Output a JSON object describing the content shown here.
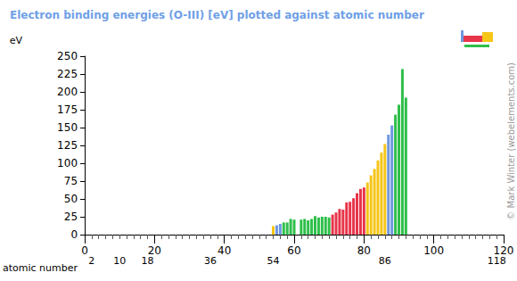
{
  "chart_data": {
    "type": "bar",
    "title": "Electron binding energies (O-III) [eV] plotted against atomic number",
    "x_label": "atomic number",
    "y_label": "eV",
    "annotations": [
      "© Mark Winter (webelements.com)"
    ],
    "x": [
      54,
      55,
      56,
      57,
      58,
      59,
      60,
      61,
      62,
      63,
      64,
      65,
      66,
      67,
      68,
      69,
      70,
      71,
      72,
      73,
      74,
      75,
      76,
      77,
      78,
      79,
      80,
      81,
      82,
      83,
      84,
      85,
      86,
      87,
      88,
      89,
      90,
      91,
      92
    ],
    "values": [
      12,
      13,
      15,
      17,
      17,
      22,
      21,
      null,
      21,
      22,
      20,
      22,
      26,
      24,
      25,
      25,
      24,
      28,
      31,
      36,
      35,
      45,
      46,
      51,
      58,
      64,
      66,
      73,
      83,
      92,
      104,
      115,
      127,
      140,
      153,
      168,
      182,
      232,
      192
    ],
    "colors": [
      "#f5c518",
      "#6d98e0",
      "#6d98e0",
      "#2fbf4a",
      "#2fbf4a",
      "#2fbf4a",
      "#2fbf4a",
      "#2fbf4a",
      "#2fbf4a",
      "#2fbf4a",
      "#2fbf4a",
      "#2fbf4a",
      "#2fbf4a",
      "#2fbf4a",
      "#2fbf4a",
      "#2fbf4a",
      "#2fbf4a",
      "#e8344a",
      "#e8344a",
      "#e8344a",
      "#e8344a",
      "#e8344a",
      "#e8344a",
      "#e8344a",
      "#e8344a",
      "#e8344a",
      "#e8344a",
      "#f5c518",
      "#f5c518",
      "#f5c518",
      "#f5c518",
      "#f5c518",
      "#f5c518",
      "#6d98e0",
      "#6d98e0",
      "#2fbf4a",
      "#2fbf4a",
      "#2fbf4a",
      "#2fbf4a"
    ],
    "xlim": [
      0,
      120
    ],
    "xticks": [
      0,
      20,
      40,
      60,
      80,
      100,
      120
    ],
    "x_secondary_ticks": [
      2,
      10,
      18,
      36,
      54,
      86,
      118
    ],
    "ylim": [
      0,
      250
    ],
    "yticks": [
      0,
      25,
      50,
      75,
      100,
      125,
      150,
      175,
      200,
      225,
      250
    ],
    "grid": false
  }
}
